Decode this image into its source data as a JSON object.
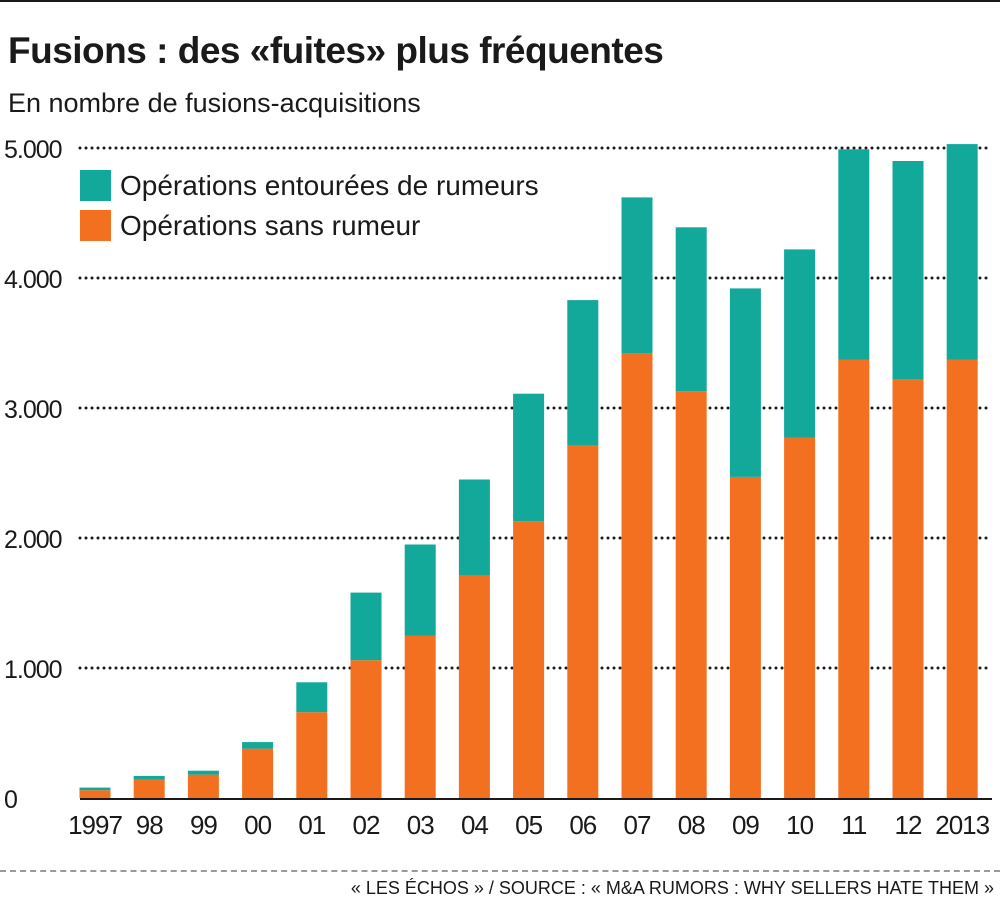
{
  "title": "Fusions : des «fuites» plus fréquentes",
  "subtitle": "En nombre de fusions-acquisitions",
  "source": "« LES ÉCHOS » / SOURCE : « M&A RUMORS : WHY SELLERS HATE THEM »",
  "colors": {
    "rumor": "#12a89a",
    "no_rumor": "#f37021",
    "grid": "#1a1a1a",
    "text": "#1a1a1a"
  },
  "chart_data": {
    "type": "bar",
    "stacked": true,
    "categories": [
      "1997",
      "98",
      "99",
      "00",
      "01",
      "02",
      "03",
      "04",
      "05",
      "06",
      "07",
      "08",
      "09",
      "10",
      "11",
      "12",
      "2013"
    ],
    "series": [
      {
        "name": "Opérations sans rumeur",
        "color": "#f37021",
        "values": [
          60,
          140,
          180,
          380,
          660,
          1060,
          1250,
          1710,
          2130,
          2710,
          3420,
          3130,
          2470,
          2770,
          3370,
          3220,
          3370
        ]
      },
      {
        "name": "Opérations entourées de rumeurs",
        "color": "#12a89a",
        "values": [
          20,
          30,
          30,
          50,
          230,
          520,
          700,
          740,
          980,
          1120,
          1200,
          1260,
          1450,
          1450,
          1620,
          1680,
          1660
        ]
      }
    ],
    "ylim": [
      0,
      5000
    ],
    "yticks": [
      0,
      1000,
      2000,
      3000,
      4000,
      5000
    ],
    "ytick_labels": [
      "0",
      "1.000",
      "2.000",
      "3.000",
      "4.000",
      "5.000"
    ],
    "grid": true,
    "grid_style": "dotted",
    "legend": {
      "placement": "top-left",
      "entries": [
        "Opérations entourées de rumeurs",
        "Opérations sans rumeur"
      ]
    },
    "xlabel": "",
    "ylabel": ""
  }
}
